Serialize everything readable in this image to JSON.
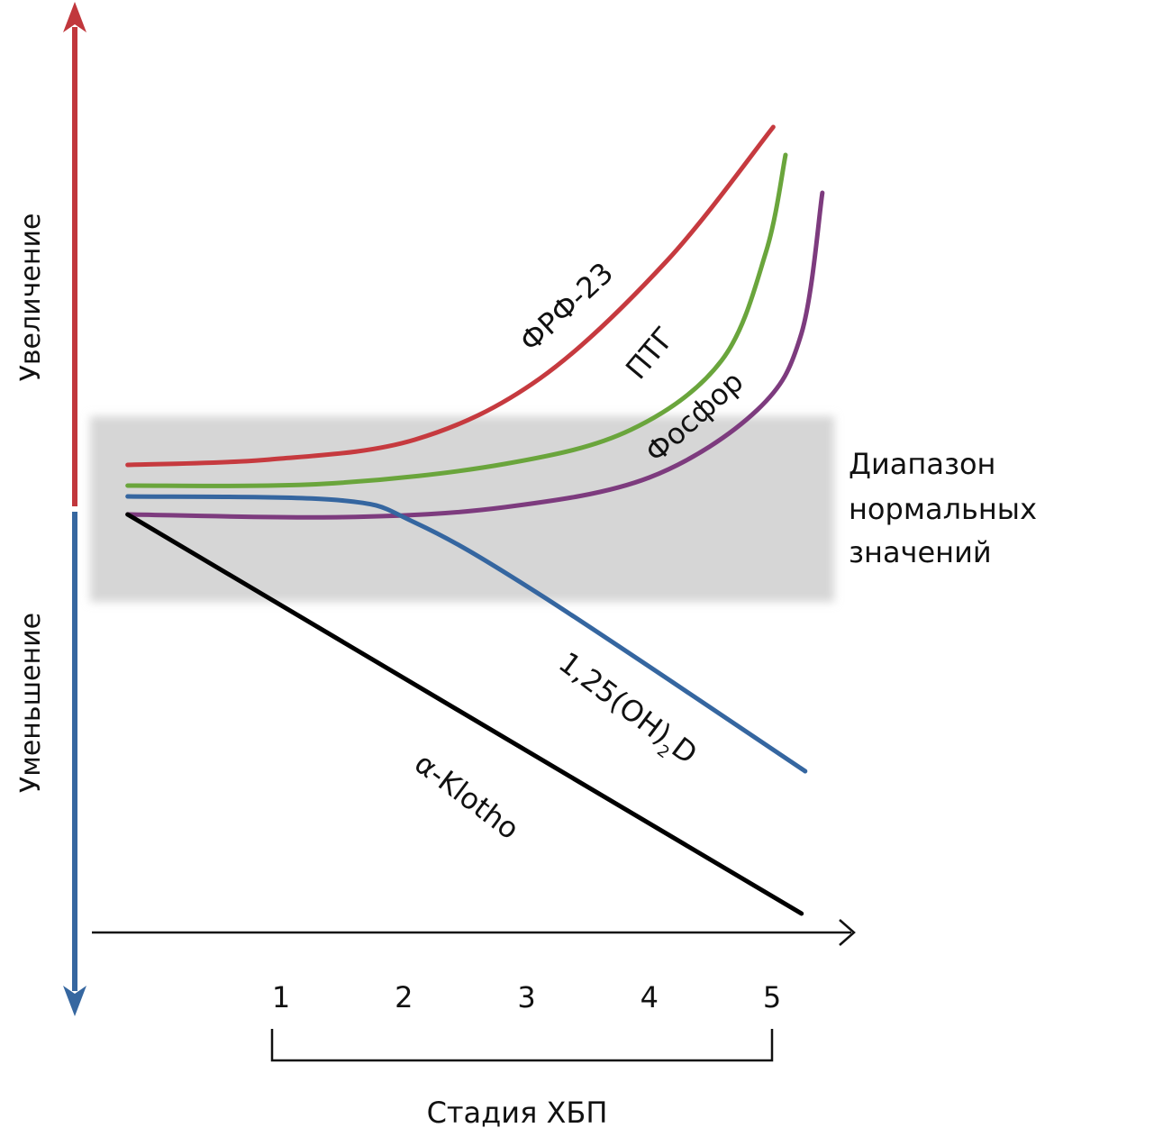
{
  "chart_data": {
    "type": "line",
    "title": "",
    "xlabel": "Стадия ХБП",
    "ylabel_up": "Увеличение",
    "ylabel_down": "Уменьшение",
    "x_ticks": [
      "1",
      "2",
      "3",
      "4",
      "5"
    ],
    "x_tick_values": [
      1,
      2,
      3,
      4,
      5
    ],
    "xlim": [
      -0.5,
      5.7
    ],
    "ylim": [
      -5.4,
      5.6
    ],
    "normal_range": {
      "label_lines": [
        "Диапазон",
        "нормальных",
        "значений"
      ],
      "y_range": [
        -1.02,
        1.04
      ],
      "color": "#d6d6d6"
    },
    "axis_colors": {
      "increase": "#c1373c",
      "decrease": "#3667a0",
      "x_axis": "#111111"
    },
    "series": [
      {
        "name": "ФРФ-23",
        "label": "ФРФ-23",
        "color": "#c63a3f",
        "points": [
          [
            -0.25,
            0.5
          ],
          [
            0.91,
            0.56
          ],
          [
            2.09,
            0.78
          ],
          [
            3.11,
            1.46
          ],
          [
            4.14,
            2.76
          ],
          [
            5.01,
            4.25
          ]
        ]
      },
      {
        "name": "ПТГ",
        "label": "ПТГ",
        "color": "#6aa53c",
        "points": [
          [
            -0.25,
            0.27
          ],
          [
            1.35,
            0.29
          ],
          [
            2.82,
            0.51
          ],
          [
            3.85,
            0.89
          ],
          [
            4.59,
            1.66
          ],
          [
            4.95,
            2.86
          ],
          [
            5.11,
            3.94
          ]
        ]
      },
      {
        "name": "Фосфор",
        "label": "Фосфор",
        "color": "#7d3b7e",
        "points": [
          [
            -0.25,
            -0.05
          ],
          [
            1.5,
            -0.08
          ],
          [
            2.82,
            0.03
          ],
          [
            4.0,
            0.36
          ],
          [
            4.88,
            1.11
          ],
          [
            5.24,
            1.96
          ],
          [
            5.41,
            3.52
          ]
        ]
      },
      {
        "name": "1,25(OH)2D",
        "label_main": "1,25(OH)",
        "label_sub": "2",
        "label_tail": "D",
        "color": "#3566a0",
        "points": [
          [
            -0.25,
            0.15
          ],
          [
            1.46,
            0.11
          ],
          [
            2.09,
            -0.14
          ],
          [
            3.11,
            -0.94
          ],
          [
            5.27,
            -2.9
          ]
        ]
      },
      {
        "name": "α-Klotho",
        "label": "α-Klotho",
        "color": "#000000",
        "points": [
          [
            -0.25,
            -0.05
          ],
          [
            5.24,
            -4.48
          ]
        ]
      }
    ]
  }
}
